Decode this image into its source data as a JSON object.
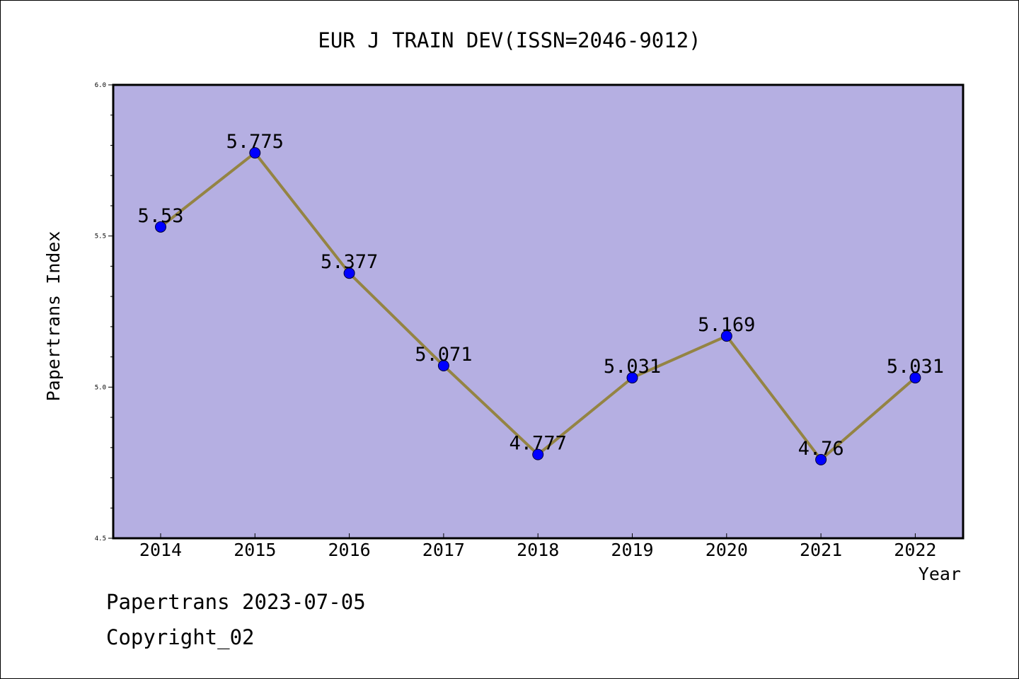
{
  "chart_data": {
    "type": "line",
    "title": "EUR J TRAIN DEV(ISSN=2046-9012)",
    "xlabel": "Year",
    "ylabel": "Papertrans Index",
    "x": [
      "2014",
      "2015",
      "2016",
      "2017",
      "2018",
      "2019",
      "2020",
      "2021",
      "2022"
    ],
    "series": [
      {
        "values": [
          5.53,
          5.775,
          5.377,
          5.071,
          4.777,
          5.031,
          5.169,
          4.76,
          5.031
        ],
        "labels": [
          "5.53",
          "5.775",
          "5.377",
          "5.071",
          "4.777",
          "5.031",
          "5.169",
          "4.76",
          "5.031"
        ]
      }
    ],
    "ylim": [
      4.5,
      6.0
    ],
    "yticks": [
      "4.5",
      "5.0",
      "5.5",
      "6.0"
    ],
    "grid": false,
    "colors": {
      "plot_background": "#b5afe2",
      "line": "#948443",
      "marker": "#0000ff"
    }
  },
  "footer": {
    "line1": "Papertrans 2023-07-05",
    "line2": "Copyright_02"
  }
}
